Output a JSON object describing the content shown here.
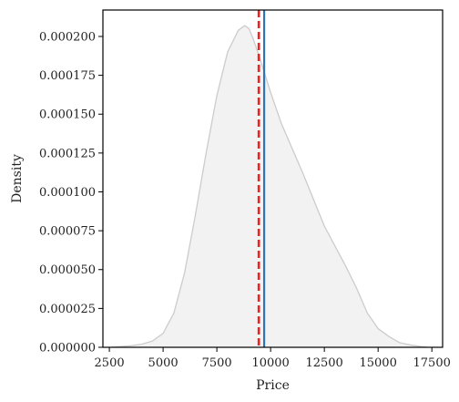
{
  "chart_data": {
    "type": "area",
    "xlabel": "Price",
    "ylabel": "Density",
    "xlim": [
      2200,
      18000
    ],
    "ylim": [
      0,
      0.000217
    ],
    "xticks": [
      2500,
      5000,
      7500,
      10000,
      12500,
      15000,
      17500
    ],
    "xtick_labels": [
      "2500",
      "5000",
      "7500",
      "10000",
      "12500",
      "15000",
      "17500"
    ],
    "yticks": [
      0,
      2.5e-05,
      5e-05,
      7.5e-05,
      0.0001,
      0.000125,
      0.00015,
      0.000175,
      0.0002
    ],
    "ytick_labels": [
      "0.000000",
      "0.000025",
      "0.000050",
      "0.000075",
      "0.000100",
      "0.000125",
      "0.000150",
      "0.000175",
      "0.000200"
    ],
    "grid": false,
    "density_curve": {
      "x": [
        2600,
        3000,
        3500,
        4000,
        4500,
        5000,
        5500,
        6000,
        6500,
        7000,
        7500,
        8000,
        8500,
        8800,
        9000,
        9200,
        9500,
        10000,
        10500,
        11000,
        11500,
        12000,
        12500,
        13000,
        13500,
        14000,
        14500,
        15000,
        15500,
        16000,
        16500,
        17000,
        17300
      ],
      "y": [
        0,
        5e-07,
        1e-06,
        2e-06,
        4e-06,
        9e-06,
        2.2e-05,
        4.8e-05,
        8.5e-05,
        0.000125,
        0.000162,
        0.00019,
        0.000204,
        0.000207,
        0.000205,
        0.000198,
        0.000186,
        0.000164,
        0.000144,
        0.000128,
        0.000112,
        9.5e-05,
        7.8e-05,
        6.5e-05,
        5.2e-05,
        3.8e-05,
        2.2e-05,
        1.2e-05,
        7e-06,
        3e-06,
        1.5e-06,
        5e-07,
        0
      ],
      "fill_color": "#f2f2f2",
      "line_color": "#cccccc"
    },
    "reference_lines": [
      {
        "x": 9700,
        "style": "solid",
        "color": "#2f74b5"
      },
      {
        "x": 9450,
        "style": "dashed",
        "color": "#ee2222"
      }
    ]
  }
}
